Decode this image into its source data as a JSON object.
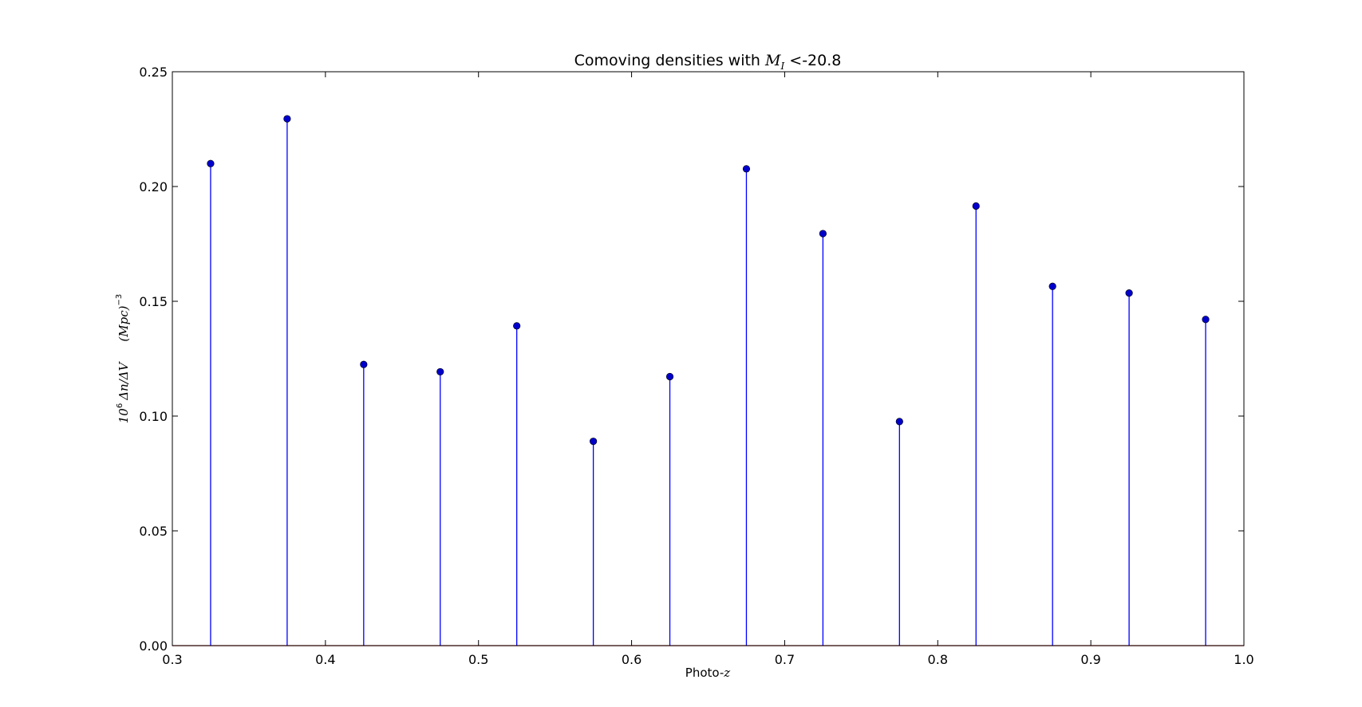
{
  "chart_data": {
    "type": "stem",
    "title": {
      "prefix": "Comoving densities with ",
      "math_symbol": "M",
      "math_subscript": "I",
      "suffix": " <-20.8"
    },
    "xlabel": {
      "text": "Photo-",
      "math": "z"
    },
    "ylabel": {
      "base": "10",
      "base_exp": "6",
      "fraction": "Δn/ΔV",
      "units": "(Mpc)",
      "units_exp": "−3"
    },
    "xlim": [
      0.3,
      1.0
    ],
    "ylim": [
      0.0,
      0.25
    ],
    "x_ticks": [
      "0.3",
      "0.4",
      "0.5",
      "0.6",
      "0.7",
      "0.8",
      "0.9",
      "1.0"
    ],
    "y_ticks": [
      "0.00",
      "0.05",
      "0.10",
      "0.15",
      "0.20",
      "0.25"
    ],
    "x": [
      0.325,
      0.375,
      0.425,
      0.475,
      0.525,
      0.575,
      0.625,
      0.675,
      0.725,
      0.775,
      0.825,
      0.875,
      0.925,
      0.975
    ],
    "y": [
      0.21,
      0.2295,
      0.1225,
      0.1193,
      0.1393,
      0.089,
      0.1172,
      0.2077,
      0.1795,
      0.0976,
      0.1915,
      0.1565,
      0.1536,
      0.1421
    ],
    "grid": false,
    "legend": "none",
    "colors": {
      "stem": "#0000ff",
      "marker": "#0000cc",
      "baseline": "#cc0000",
      "axes": "#000000"
    }
  }
}
